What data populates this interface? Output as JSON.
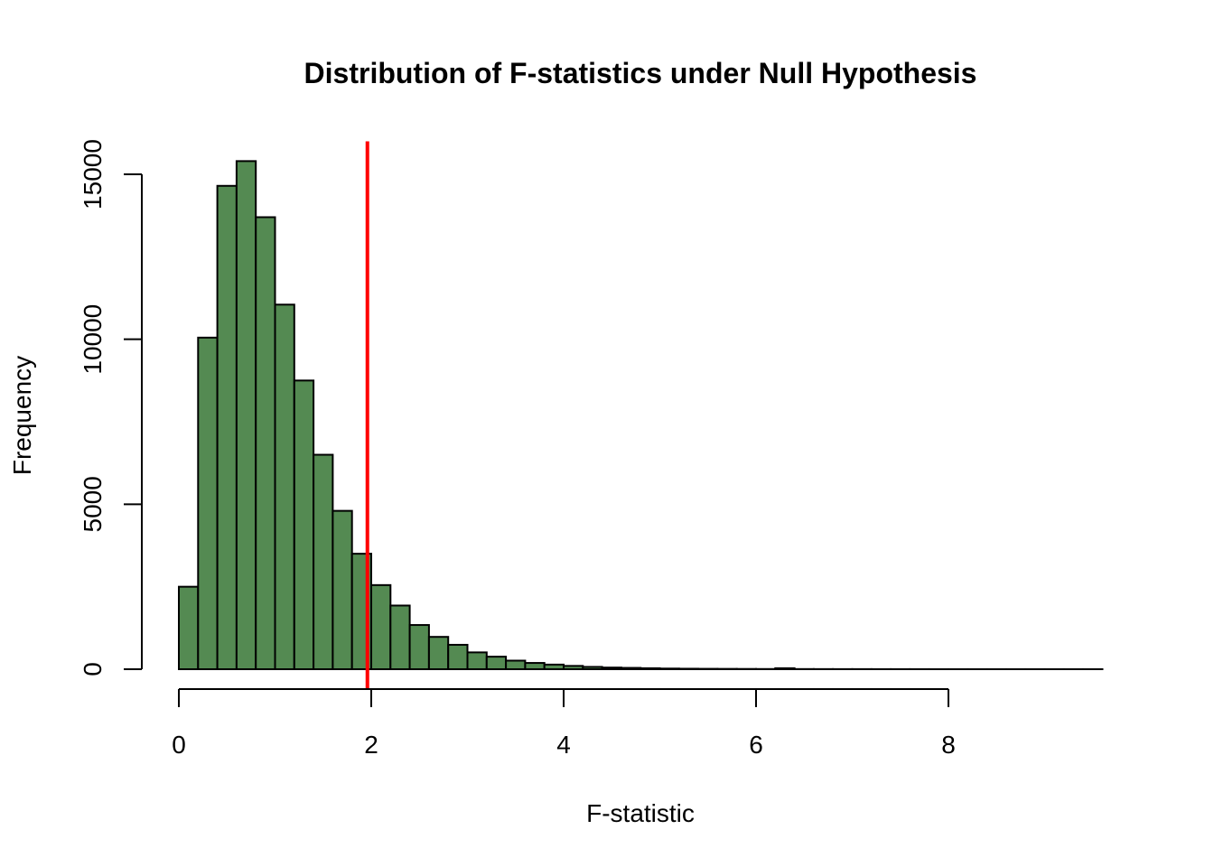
{
  "chart_data": {
    "type": "bar",
    "title": "Distribution of F-statistics under Null Hypothesis",
    "xlabel": "F-statistic",
    "ylabel": "Frequency",
    "bin_width": 0.2,
    "bin_start": 0,
    "counts": [
      2500,
      10050,
      14650,
      15400,
      13700,
      11050,
      8750,
      6500,
      4800,
      3500,
      2550,
      1930,
      1340,
      980,
      740,
      510,
      380,
      260,
      190,
      140,
      100,
      70,
      50,
      40,
      30,
      20,
      15,
      12,
      10,
      8,
      6,
      30,
      5,
      4,
      3,
      3,
      2,
      2,
      2,
      1,
      1,
      1,
      1,
      1,
      1,
      1,
      1,
      1
    ],
    "x_ticks": [
      "0",
      "2",
      "4",
      "6",
      "8"
    ],
    "y_ticks": [
      "0",
      "5000",
      "10000",
      "15000"
    ],
    "xlim": [
      0,
      8
    ],
    "ylim": [
      0,
      15000
    ],
    "critical_value": 1.96,
    "critical_line_top": 16000,
    "colors": {
      "bar_fill": "#548a52",
      "bar_stroke": "#000000",
      "critical_line": "#ff0000"
    }
  }
}
